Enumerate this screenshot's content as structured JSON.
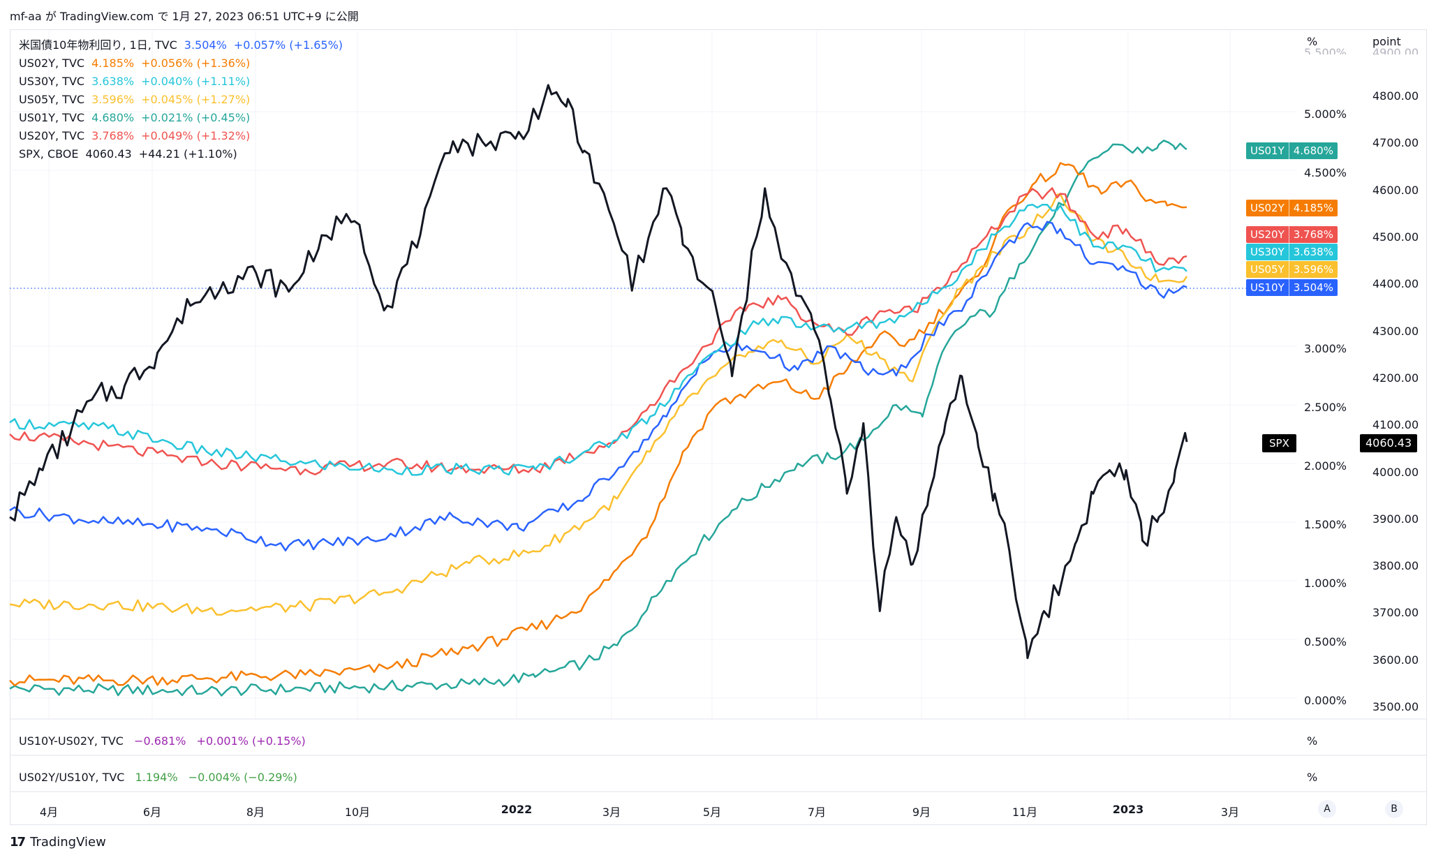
{
  "header": {
    "title": "mf-aa が TradingView.com で 1月 27, 2023 06:51 UTC+9 に公開"
  },
  "legend": [
    {
      "symbol": "米国債10年物利回り, 1日, TVC",
      "value": "3.504%",
      "change": "+0.057% (+1.65%)",
      "color": "#2962ff"
    },
    {
      "symbol": "US02Y, TVC",
      "value": "4.185%",
      "change": "+0.056% (+1.36%)",
      "color": "#f57c00"
    },
    {
      "symbol": "US30Y, TVC",
      "value": "3.638%",
      "change": "+0.040% (+1.11%)",
      "color": "#26c6da"
    },
    {
      "symbol": "US05Y, TVC",
      "value": "3.596%",
      "change": "+0.045% (+1.27%)",
      "color": "#fbc02d"
    },
    {
      "symbol": "US01Y, TVC",
      "value": "4.680%",
      "change": "+0.021% (+0.45%)",
      "color": "#26a69a"
    },
    {
      "symbol": "US20Y, TVC",
      "value": "3.768%",
      "change": "+0.049% (+1.32%)",
      "color": "#ef5350"
    },
    {
      "symbol": "SPX, CBOE",
      "value": "4060.43",
      "change": "+44.21 (+1.10%)",
      "color": "#131722"
    }
  ],
  "sub_panes": [
    {
      "symbol": "US10Y-US02Y, TVC",
      "value": "−0.681%",
      "change": "+0.001% (+0.15%)",
      "color": "#9c27b0"
    },
    {
      "symbol": "US02Y/US10Y, TVC",
      "value": "1.194%",
      "change": "−0.004% (−0.29%)",
      "color": "#43a047"
    }
  ],
  "axes": {
    "pct_unit": "%",
    "point_unit": "point",
    "pct_top_partial": "5.500%",
    "point_top_partial": "4900.00",
    "pct_ticks": [
      "5.000%",
      "4.500%",
      "3.000%",
      "2.500%",
      "2.000%",
      "1.500%",
      "1.000%",
      "0.500%",
      "0.000%"
    ],
    "point_ticks": [
      "4800.00",
      "4700.00",
      "4600.00",
      "4500.00",
      "4400.00",
      "4300.00",
      "4200.00",
      "4100.00",
      "4000.00",
      "3900.00",
      "3800.00",
      "3700.00",
      "3600.00",
      "3500.00"
    ],
    "x_ticks": [
      {
        "label": "4月",
        "bold": false
      },
      {
        "label": "6月",
        "bold": false
      },
      {
        "label": "8月",
        "bold": false
      },
      {
        "label": "10月",
        "bold": false
      },
      {
        "label": "2022",
        "bold": true
      },
      {
        "label": "3月",
        "bold": false
      },
      {
        "label": "5月",
        "bold": false
      },
      {
        "label": "7月",
        "bold": false
      },
      {
        "label": "9月",
        "bold": false
      },
      {
        "label": "11月",
        "bold": false
      },
      {
        "label": "2023",
        "bold": true
      },
      {
        "label": "3月",
        "bold": false
      }
    ],
    "buttons": [
      "A",
      "B"
    ]
  },
  "price_tags": [
    {
      "name": "US01Y",
      "value": "4.680%",
      "color": "#26a69a"
    },
    {
      "name": "US02Y",
      "value": "4.185%",
      "color": "#f57c00"
    },
    {
      "name": "US20Y",
      "value": "3.768%",
      "color": "#ef5350"
    },
    {
      "name": "US30Y",
      "value": "3.638%",
      "color": "#26c6da"
    },
    {
      "name": "US05Y",
      "value": "3.596%",
      "color": "#fbc02d"
    },
    {
      "name": "US10Y",
      "value": "3.504%",
      "color": "#2962ff"
    }
  ],
  "spx_tag": {
    "name": "SPX",
    "value": "4060.43"
  },
  "footer": {
    "brand": "TradingView",
    "logo": "17"
  },
  "chart_data": {
    "type": "line",
    "x_range": [
      "2021-03-01",
      "2023-01-26"
    ],
    "y_left_unit": "%",
    "y_right_unit": "point",
    "y_pct_range": [
      0.0,
      5.5
    ],
    "y_point_range": [
      3500,
      4900
    ],
    "grid": true,
    "legend_position": "top-left",
    "series": [
      {
        "name": "US01Y",
        "axis": "pct",
        "color": "#26a69a",
        "values": [
          [
            0,
            0.08
          ],
          [
            60,
            0.07
          ],
          [
            120,
            0.06
          ],
          [
            180,
            0.08
          ],
          [
            230,
            0.1
          ],
          [
            280,
            0.12
          ],
          [
            320,
            0.18
          ],
          [
            350,
            0.3
          ],
          [
            370,
            0.45
          ],
          [
            385,
            0.7
          ],
          [
            400,
            1.0
          ],
          [
            420,
            1.3
          ],
          [
            440,
            1.6
          ],
          [
            460,
            1.8
          ],
          [
            480,
            2.0
          ],
          [
            500,
            2.05
          ],
          [
            520,
            2.2
          ],
          [
            540,
            2.5
          ],
          [
            556,
            2.4
          ],
          [
            570,
            3.0
          ],
          [
            585,
            3.25
          ],
          [
            600,
            3.3
          ],
          [
            615,
            3.7
          ],
          [
            630,
            4.0
          ],
          [
            645,
            4.3
          ],
          [
            660,
            4.6
          ],
          [
            675,
            4.72
          ],
          [
            690,
            4.65
          ],
          [
            700,
            4.72
          ],
          [
            710,
            4.68
          ],
          [
            717,
            4.68
          ]
        ]
      },
      {
        "name": "US02Y",
        "axis": "pct",
        "color": "#f57c00",
        "values": [
          [
            0,
            0.15
          ],
          [
            60,
            0.15
          ],
          [
            120,
            0.17
          ],
          [
            180,
            0.2
          ],
          [
            230,
            0.25
          ],
          [
            270,
            0.4
          ],
          [
            300,
            0.5
          ],
          [
            330,
            0.65
          ],
          [
            350,
            0.8
          ],
          [
            370,
            1.1
          ],
          [
            390,
            1.45
          ],
          [
            410,
            2.1
          ],
          [
            430,
            2.5
          ],
          [
            450,
            2.6
          ],
          [
            470,
            2.7
          ],
          [
            490,
            2.55
          ],
          [
            510,
            2.8
          ],
          [
            530,
            3.1
          ],
          [
            545,
            3.0
          ],
          [
            560,
            3.2
          ],
          [
            575,
            3.4
          ],
          [
            590,
            3.6
          ],
          [
            605,
            4.1
          ],
          [
            625,
            4.4
          ],
          [
            645,
            4.55
          ],
          [
            665,
            4.3
          ],
          [
            680,
            4.4
          ],
          [
            695,
            4.25
          ],
          [
            705,
            4.2
          ],
          [
            717,
            4.185
          ]
        ]
      },
      {
        "name": "US05Y",
        "axis": "pct",
        "color": "#fbc02d",
        "values": [
          [
            0,
            0.8
          ],
          [
            60,
            0.8
          ],
          [
            120,
            0.75
          ],
          [
            180,
            0.78
          ],
          [
            230,
            0.9
          ],
          [
            280,
            1.15
          ],
          [
            320,
            1.25
          ],
          [
            350,
            1.5
          ],
          [
            370,
            1.7
          ],
          [
            390,
            2.1
          ],
          [
            410,
            2.5
          ],
          [
            430,
            2.75
          ],
          [
            450,
            2.95
          ],
          [
            470,
            3.05
          ],
          [
            490,
            2.85
          ],
          [
            510,
            3.1
          ],
          [
            530,
            2.9
          ],
          [
            550,
            2.7
          ],
          [
            565,
            3.2
          ],
          [
            580,
            3.5
          ],
          [
            600,
            3.8
          ],
          [
            620,
            4.0
          ],
          [
            640,
            4.3
          ],
          [
            660,
            3.9
          ],
          [
            680,
            3.75
          ],
          [
            700,
            3.55
          ],
          [
            717,
            3.596
          ]
        ]
      },
      {
        "name": "US10Y",
        "axis": "pct",
        "color": "#2962ff",
        "values": [
          [
            0,
            1.6
          ],
          [
            60,
            1.5
          ],
          [
            120,
            1.45
          ],
          [
            170,
            1.3
          ],
          [
            220,
            1.35
          ],
          [
            270,
            1.55
          ],
          [
            310,
            1.45
          ],
          [
            350,
            1.7
          ],
          [
            380,
            2.1
          ],
          [
            400,
            2.4
          ],
          [
            420,
            2.85
          ],
          [
            440,
            3.0
          ],
          [
            460,
            2.95
          ],
          [
            480,
            2.8
          ],
          [
            500,
            3.0
          ],
          [
            520,
            2.8
          ],
          [
            540,
            2.75
          ],
          [
            560,
            3.1
          ],
          [
            580,
            3.3
          ],
          [
            600,
            3.75
          ],
          [
            620,
            4.05
          ],
          [
            640,
            4.0
          ],
          [
            660,
            3.7
          ],
          [
            680,
            3.65
          ],
          [
            700,
            3.45
          ],
          [
            717,
            3.504
          ]
        ]
      },
      {
        "name": "US20Y",
        "axis": "pct",
        "color": "#ef5350",
        "values": [
          [
            0,
            2.25
          ],
          [
            60,
            2.15
          ],
          [
            120,
            2.0
          ],
          [
            180,
            1.95
          ],
          [
            230,
            2.0
          ],
          [
            280,
            1.95
          ],
          [
            320,
            1.95
          ],
          [
            350,
            2.1
          ],
          [
            370,
            2.2
          ],
          [
            390,
            2.5
          ],
          [
            410,
            2.8
          ],
          [
            430,
            3.1
          ],
          [
            450,
            3.35
          ],
          [
            470,
            3.4
          ],
          [
            490,
            3.2
          ],
          [
            510,
            3.1
          ],
          [
            530,
            3.3
          ],
          [
            550,
            3.3
          ],
          [
            565,
            3.5
          ],
          [
            580,
            3.7
          ],
          [
            600,
            4.0
          ],
          [
            620,
            4.3
          ],
          [
            640,
            4.3
          ],
          [
            660,
            3.95
          ],
          [
            680,
            4.0
          ],
          [
            700,
            3.7
          ],
          [
            717,
            3.768
          ]
        ]
      },
      {
        "name": "US30Y",
        "axis": "pct",
        "color": "#26c6da",
        "values": [
          [
            0,
            2.35
          ],
          [
            60,
            2.3
          ],
          [
            120,
            2.1
          ],
          [
            180,
            2.0
          ],
          [
            230,
            1.95
          ],
          [
            280,
            1.95
          ],
          [
            320,
            1.95
          ],
          [
            350,
            2.1
          ],
          [
            370,
            2.2
          ],
          [
            390,
            2.4
          ],
          [
            410,
            2.7
          ],
          [
            430,
            2.95
          ],
          [
            450,
            3.15
          ],
          [
            470,
            3.25
          ],
          [
            490,
            3.15
          ],
          [
            510,
            3.15
          ],
          [
            530,
            3.2
          ],
          [
            550,
            3.3
          ],
          [
            565,
            3.45
          ],
          [
            580,
            3.65
          ],
          [
            600,
            3.95
          ],
          [
            620,
            4.2
          ],
          [
            640,
            4.2
          ],
          [
            660,
            3.85
          ],
          [
            680,
            3.85
          ],
          [
            700,
            3.65
          ],
          [
            717,
            3.638
          ]
        ]
      },
      {
        "name": "SPX",
        "axis": "point",
        "color": "#131722",
        "values": [
          [
            0,
            3900
          ],
          [
            20,
            4000
          ],
          [
            50,
            4150
          ],
          [
            70,
            4180
          ],
          [
            90,
            4250
          ],
          [
            110,
            4350
          ],
          [
            130,
            4400
          ],
          [
            150,
            4420
          ],
          [
            170,
            4380
          ],
          [
            190,
            4500
          ],
          [
            210,
            4530
          ],
          [
            230,
            4350
          ],
          [
            250,
            4500
          ],
          [
            270,
            4700
          ],
          [
            290,
            4690
          ],
          [
            310,
            4720
          ],
          [
            330,
            4800
          ],
          [
            340,
            4790
          ],
          [
            350,
            4680
          ],
          [
            370,
            4500
          ],
          [
            380,
            4400
          ],
          [
            400,
            4600
          ],
          [
            410,
            4480
          ],
          [
            430,
            4350
          ],
          [
            440,
            4200
          ],
          [
            460,
            4600
          ],
          [
            470,
            4450
          ],
          [
            490,
            4300
          ],
          [
            500,
            4150
          ],
          [
            510,
            3950
          ],
          [
            520,
            4100
          ],
          [
            530,
            3700
          ],
          [
            540,
            3900
          ],
          [
            550,
            3800
          ],
          [
            560,
            3950
          ],
          [
            570,
            4100
          ],
          [
            580,
            4200
          ],
          [
            590,
            4050
          ],
          [
            600,
            3950
          ],
          [
            610,
            3800
          ],
          [
            620,
            3600
          ],
          [
            630,
            3700
          ],
          [
            640,
            3750
          ],
          [
            650,
            3850
          ],
          [
            660,
            3950
          ],
          [
            670,
            4000
          ],
          [
            680,
            4000
          ],
          [
            690,
            3850
          ],
          [
            700,
            3900
          ],
          [
            710,
            4000
          ],
          [
            717,
            4060
          ]
        ]
      }
    ]
  }
}
